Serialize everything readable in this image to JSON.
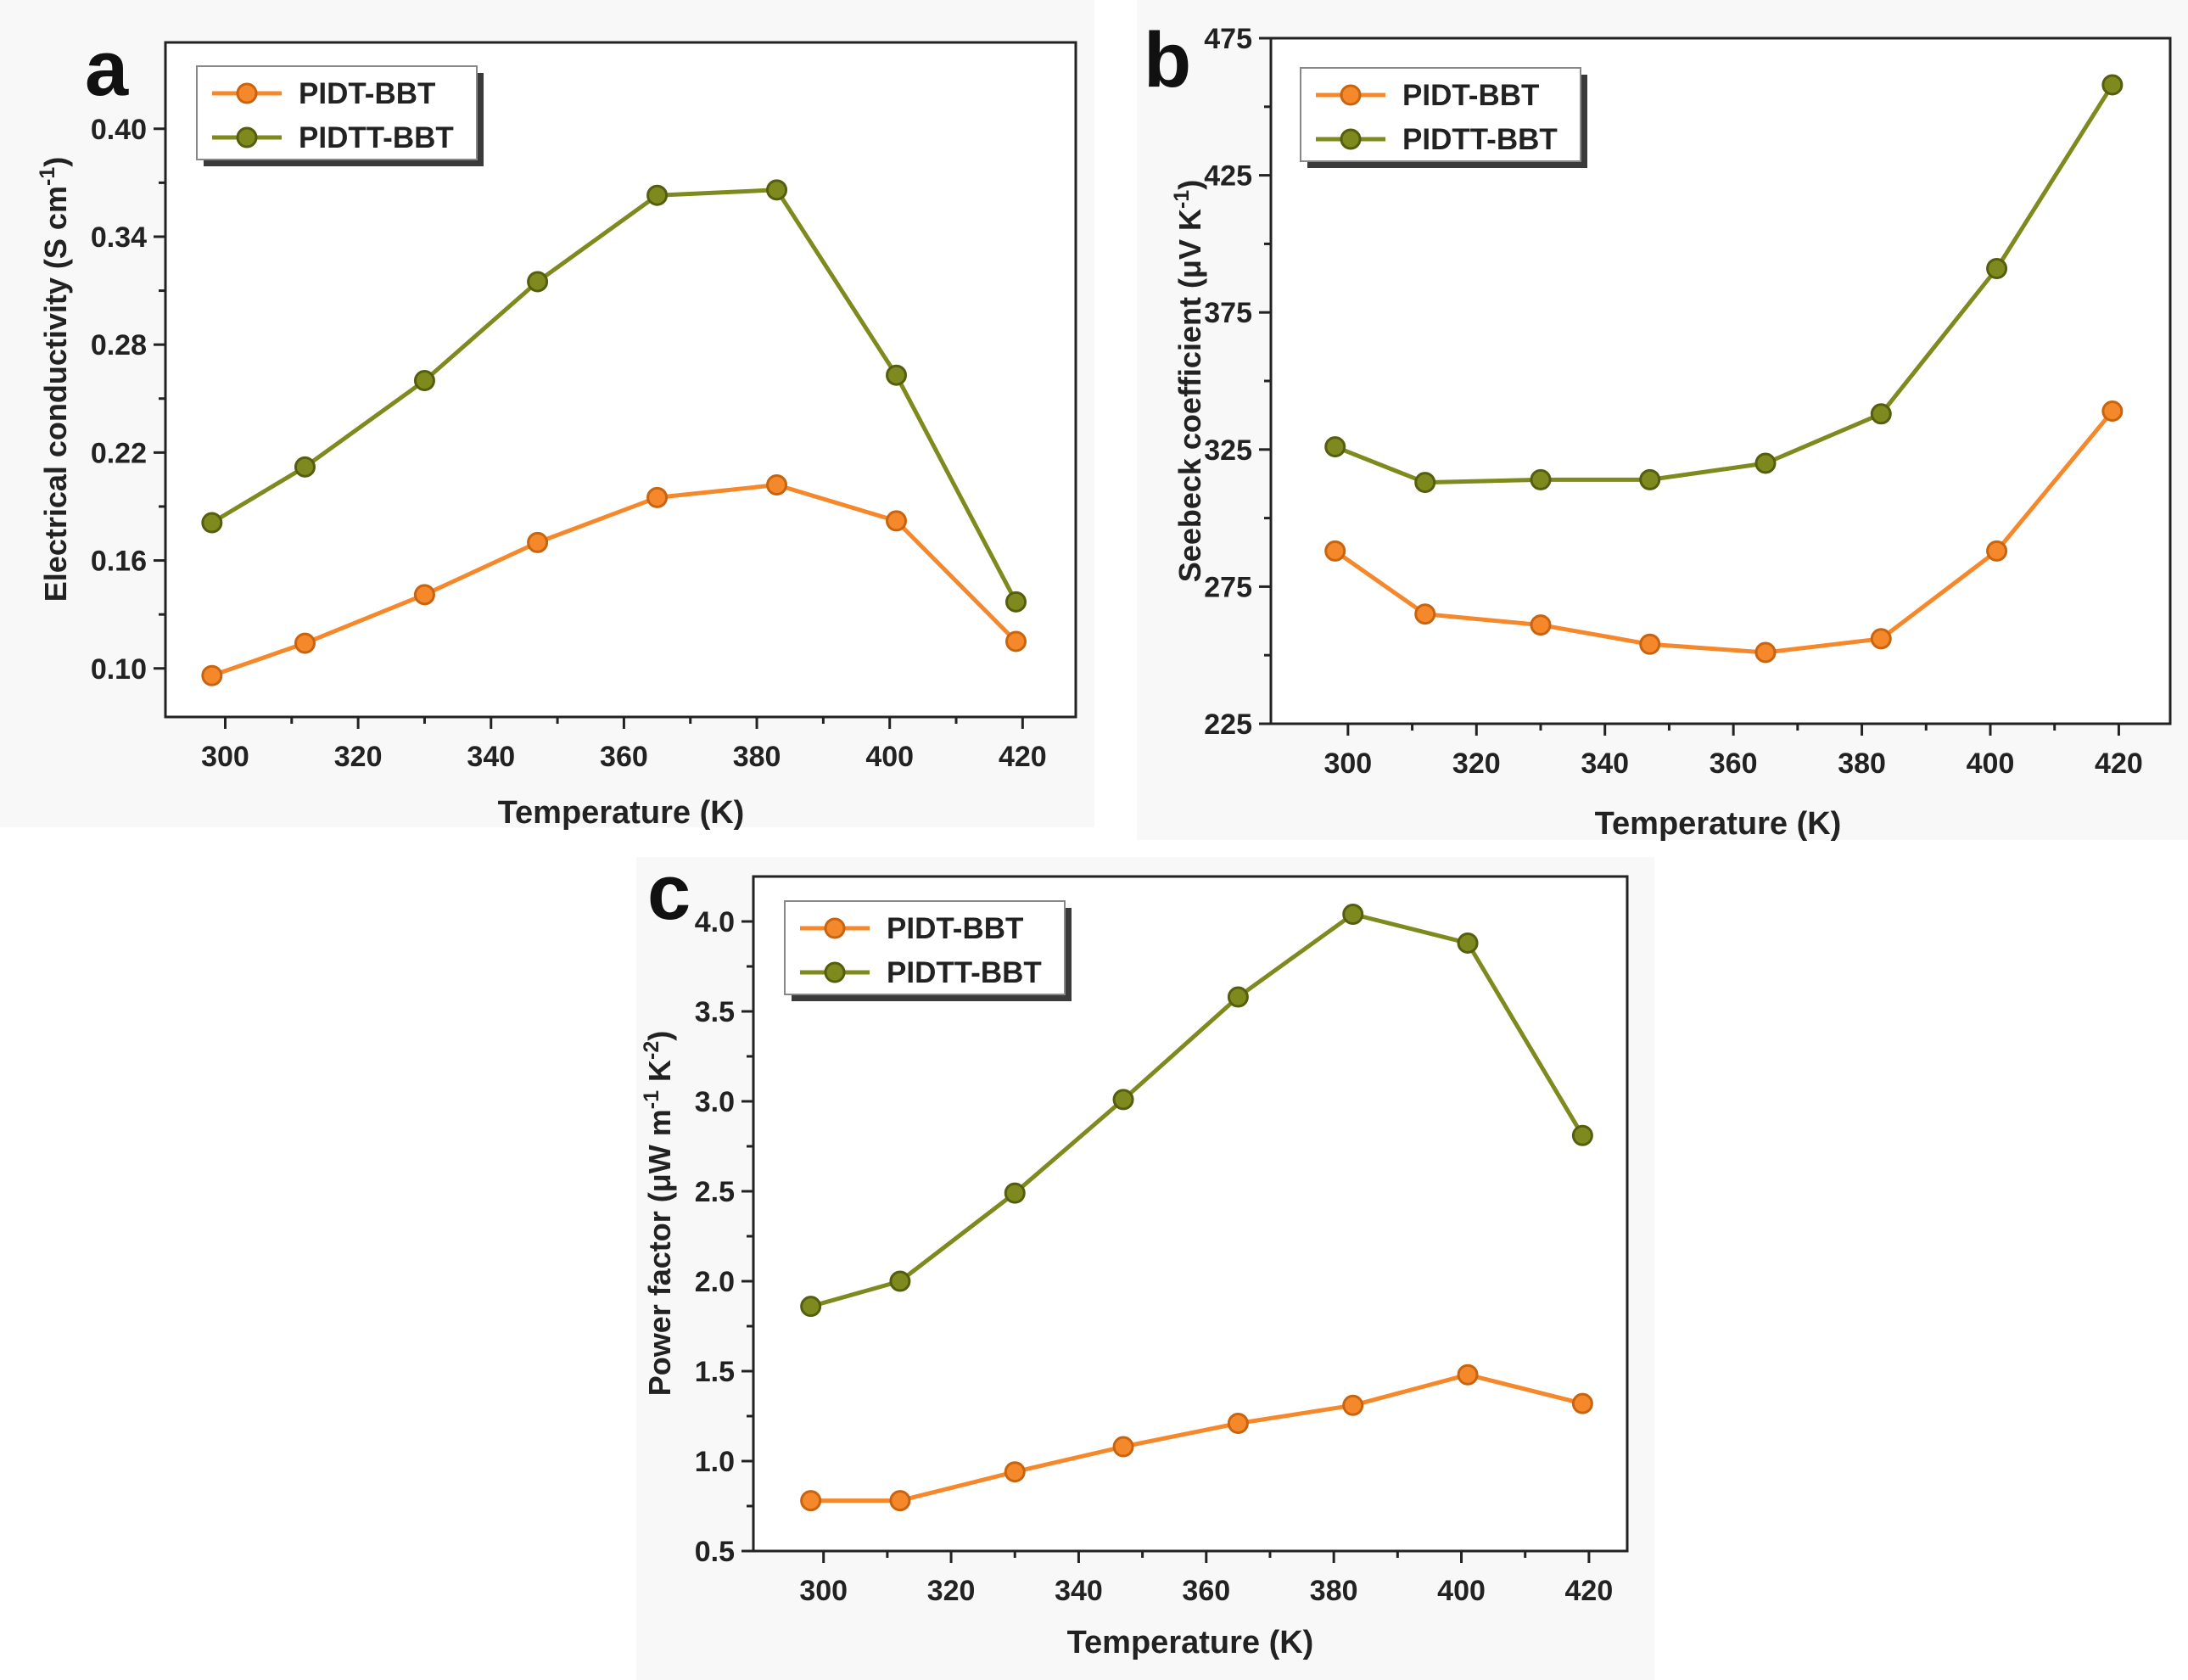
{
  "colors": {
    "PIDT-BBT": "#f5882a",
    "PIDT-BBT-edge": "#c86410",
    "PIDTT-BBT": "#7f8a1e",
    "PIDTT-BBT-edge": "#555d0e"
  },
  "chart_data": [
    {
      "id": "a",
      "panel_label": "a",
      "type": "line",
      "title": "",
      "xlabel": "Temperature (K)",
      "ylabel": "Electrical conductivity (S cm",
      "ylabel_sup": "-1",
      "ylabel_end": ")",
      "xlim": [
        291,
        428
      ],
      "ylim": [
        0.073,
        0.448
      ],
      "xticks": [
        "300",
        "320",
        "340",
        "360",
        "380",
        "400",
        "420"
      ],
      "yticks": [
        "0.10",
        "0.16",
        "0.22",
        "0.28",
        "0.34",
        "0.40"
      ],
      "legend_position": "top-left",
      "series": [
        {
          "name": "PIDT-BBT",
          "x": [
            298,
            312,
            330,
            347,
            365,
            383,
            401,
            419
          ],
          "y": [
            0.096,
            0.114,
            0.141,
            0.17,
            0.195,
            0.202,
            0.182,
            0.115
          ]
        },
        {
          "name": "PIDTT-BBT",
          "x": [
            298,
            312,
            330,
            347,
            365,
            383,
            401,
            419
          ],
          "y": [
            0.181,
            0.212,
            0.26,
            0.315,
            0.363,
            0.366,
            0.263,
            0.137
          ]
        }
      ]
    },
    {
      "id": "b",
      "panel_label": "b",
      "type": "line",
      "title": "",
      "xlabel": "Temperature (K)",
      "ylabel": "Seebeck coefficient (μV K",
      "ylabel_sup": "-1",
      "ylabel_end": ")",
      "xlim": [
        288,
        428
      ],
      "ylim": [
        225,
        475
      ],
      "xticks": [
        "300",
        "320",
        "340",
        "360",
        "380",
        "400",
        "420"
      ],
      "yticks": [
        "225",
        "275",
        "325",
        "375",
        "425",
        "475"
      ],
      "legend_position": "top-left",
      "series": [
        {
          "name": "PIDT-BBT",
          "x": [
            298,
            312,
            330,
            347,
            365,
            383,
            401,
            419
          ],
          "y": [
            288,
            265,
            261,
            254,
            251,
            256,
            288,
            339
          ]
        },
        {
          "name": "PIDTT-BBT",
          "x": [
            298,
            312,
            330,
            347,
            365,
            383,
            401,
            419
          ],
          "y": [
            326,
            313,
            314,
            314,
            320,
            338,
            391,
            458
          ]
        }
      ]
    },
    {
      "id": "c",
      "panel_label": "c",
      "type": "line",
      "title": "",
      "xlabel": "Temperature (K)",
      "ylabel": "Power factor (μW m",
      "ylabel_sup": "-1",
      "ylabel_mid": " K",
      "ylabel_sup2": "-2",
      "ylabel_end": ")",
      "xlim": [
        289,
        426
      ],
      "ylim": [
        0.5,
        4.25
      ],
      "xticks": [
        "300",
        "320",
        "340",
        "360",
        "380",
        "400",
        "420"
      ],
      "yticks": [
        "0.5",
        "1.0",
        "1.5",
        "2.0",
        "2.5",
        "3.0",
        "3.5",
        "4.0"
      ],
      "legend_position": "top-left",
      "series": [
        {
          "name": "PIDT-BBT",
          "x": [
            298,
            312,
            330,
            347,
            365,
            383,
            401,
            419
          ],
          "y": [
            0.78,
            0.78,
            0.94,
            1.08,
            1.21,
            1.31,
            1.48,
            1.32
          ]
        },
        {
          "name": "PIDTT-BBT",
          "x": [
            298,
            312,
            330,
            347,
            365,
            383,
            401,
            419
          ],
          "y": [
            1.86,
            2.0,
            2.49,
            3.01,
            3.58,
            4.04,
            3.88,
            2.81
          ]
        }
      ]
    }
  ]
}
